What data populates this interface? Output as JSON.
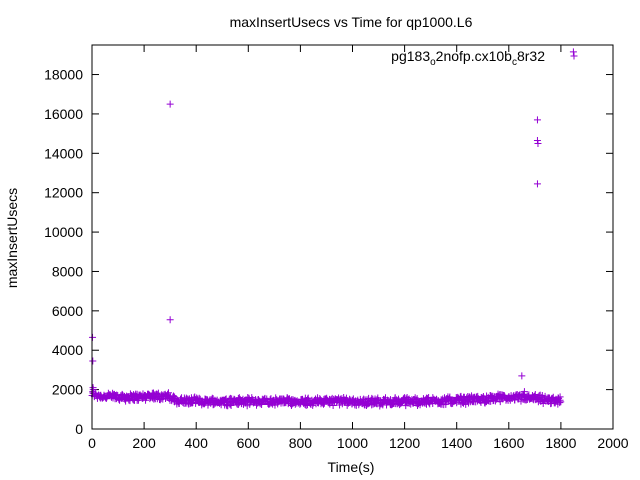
{
  "chart_data": {
    "type": "scatter",
    "title": "maxInsertUsecs vs Time for qp1000.L6",
    "xlabel": "Time(s)",
    "ylabel": "maxInsertUsecs",
    "xlim": [
      0,
      2000
    ],
    "ylim": [
      0,
      19500
    ],
    "xticks": [
      0,
      200,
      400,
      600,
      800,
      1000,
      1200,
      1400,
      1600,
      1800,
      2000
    ],
    "yticks": [
      0,
      2000,
      4000,
      6000,
      8000,
      10000,
      12000,
      14000,
      16000,
      18000
    ],
    "grid": false,
    "legend_position": "top-right",
    "marker": "plus",
    "series": [
      {
        "name_main": "pg183",
        "name_sub1": "o",
        "name_mid": "2nofp.cx10b",
        "name_sub2": "c",
        "name_end": "8r32",
        "color": "#9400d3",
        "outliers": [
          [
            2,
            4650
          ],
          [
            3,
            3450
          ],
          [
            4,
            2100
          ],
          [
            5,
            2000
          ],
          [
            300,
            16500
          ],
          [
            300,
            5550
          ],
          [
            1650,
            2700
          ],
          [
            1660,
            1900
          ],
          [
            1710,
            15700
          ],
          [
            1710,
            14650
          ],
          [
            1712,
            14500
          ],
          [
            1710,
            12450
          ],
          [
            1848,
            19150
          ]
        ],
        "band": [
          [
            0,
            1750
          ],
          [
            50,
            1650
          ],
          [
            100,
            1650
          ],
          [
            150,
            1600
          ],
          [
            200,
            1650
          ],
          [
            250,
            1700
          ],
          [
            290,
            1650
          ],
          [
            320,
            1450
          ],
          [
            400,
            1400
          ],
          [
            500,
            1400
          ],
          [
            600,
            1400
          ],
          [
            700,
            1400
          ],
          [
            800,
            1400
          ],
          [
            900,
            1400
          ],
          [
            1000,
            1400
          ],
          [
            1100,
            1380
          ],
          [
            1200,
            1400
          ],
          [
            1300,
            1420
          ],
          [
            1400,
            1450
          ],
          [
            1500,
            1520
          ],
          [
            1600,
            1580
          ],
          [
            1660,
            1600
          ],
          [
            1700,
            1550
          ],
          [
            1750,
            1450
          ],
          [
            1800,
            1450
          ]
        ],
        "band_spread": 330,
        "band_points": 900
      }
    ]
  }
}
